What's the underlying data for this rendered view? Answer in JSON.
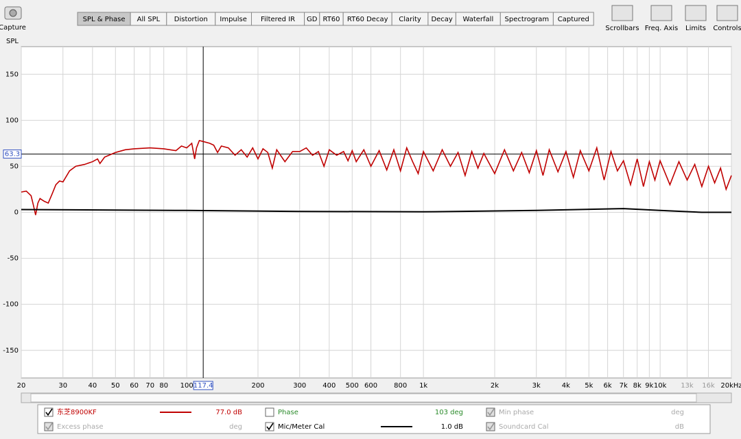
{
  "toolbar": {
    "capture": "Capture",
    "tabs": [
      "SPL & Phase",
      "All SPL",
      "Distortion",
      "Impulse",
      "Filtered IR",
      "GD",
      "RT60",
      "RT60 Decay",
      "Clarity",
      "Decay",
      "Waterfall",
      "Spectrogram",
      "Captured"
    ],
    "tools": [
      "Scrollbars",
      "Freq. Axis",
      "Limits",
      "Controls"
    ]
  },
  "chart": {
    "type": "line",
    "y_label": "SPL",
    "xscale": "log",
    "grid": true,
    "xlim": [
      20,
      20000
    ],
    "ylim": [
      -180,
      180
    ],
    "yticks": [
      -150,
      -100,
      -50,
      0,
      50,
      100,
      150
    ],
    "xticks": [
      20,
      30,
      40,
      50,
      60,
      70,
      80,
      100,
      200,
      300,
      400,
      500,
      600,
      800,
      {
        "value": 1000,
        "label": "1k"
      },
      {
        "value": 2000,
        "label": "2k"
      },
      {
        "value": 3000,
        "label": "3k"
      },
      {
        "value": 4000,
        "label": "4k"
      },
      {
        "value": 5000,
        "label": "5k"
      },
      {
        "value": 6000,
        "label": "6k"
      },
      {
        "value": 7000,
        "label": "7k"
      },
      {
        "value": 8000,
        "label": "8k"
      },
      {
        "value": 9000,
        "label": "9k"
      },
      {
        "value": 10000,
        "label": "10k"
      },
      {
        "value": 13000,
        "label": "13k"
      },
      {
        "value": 16000,
        "label": "16k"
      },
      {
        "value": 20000,
        "label": "20kHz"
      }
    ],
    "cursor": {
      "x": 117.4,
      "y": 63.3
    },
    "series": [
      {
        "name": "东芝8900KF",
        "color": "#c00000",
        "x": [
          20,
          21,
          22,
          22.5,
          23,
          23.5,
          24,
          25,
          26,
          27,
          28,
          29,
          30,
          32,
          34,
          37,
          40,
          42,
          43,
          45,
          50,
          55,
          60,
          70,
          80,
          90,
          95,
          100,
          105,
          108,
          110,
          113,
          117,
          125,
          130,
          135,
          140,
          150,
          160,
          170,
          180,
          190,
          200,
          210,
          220,
          230,
          240,
          260,
          280,
          300,
          320,
          340,
          360,
          380,
          400,
          430,
          460,
          480,
          500,
          520,
          560,
          600,
          650,
          700,
          750,
          800,
          850,
          900,
          950,
          1000,
          1100,
          1200,
          1300,
          1400,
          1500,
          1600,
          1700,
          1800,
          2000,
          2200,
          2400,
          2600,
          2800,
          3000,
          3200,
          3400,
          3700,
          4000,
          4300,
          4600,
          5000,
          5400,
          5800,
          6200,
          6600,
          7000,
          7500,
          8000,
          8500,
          9000,
          9500,
          10000,
          11000,
          12000,
          13000,
          14000,
          15000,
          16000,
          17000,
          18000,
          19000,
          20000
        ],
        "values": [
          22,
          23,
          18,
          8,
          -3,
          10,
          15,
          12,
          10,
          20,
          30,
          34,
          33,
          45,
          50,
          52,
          55,
          58,
          53,
          60,
          65,
          68,
          69,
          70,
          69,
          67,
          72,
          70,
          75,
          58,
          70,
          78,
          77,
          75,
          73,
          65,
          72,
          70,
          62,
          68,
          60,
          70,
          58,
          69,
          65,
          48,
          68,
          55,
          66,
          66,
          70,
          62,
          66,
          50,
          68,
          62,
          66,
          56,
          67,
          55,
          68,
          50,
          67,
          46,
          68,
          45,
          70,
          55,
          42,
          66,
          45,
          68,
          50,
          65,
          40,
          66,
          48,
          64,
          42,
          68,
          45,
          65,
          43,
          67,
          40,
          68,
          44,
          66,
          38,
          67,
          45,
          70,
          35,
          66,
          45,
          56,
          30,
          58,
          28,
          55,
          35,
          56,
          30,
          55,
          35,
          52,
          28,
          50,
          32,
          48,
          25,
          40
        ]
      },
      {
        "name": "Mic/Meter Cal",
        "color": "#000000",
        "x": [
          20,
          100,
          300,
          1000,
          3000,
          7000,
          10000,
          15000,
          20000
        ],
        "values": [
          3,
          2,
          1,
          0.5,
          2,
          4,
          2,
          0,
          0
        ]
      }
    ]
  },
  "scrollbar": {
    "labels": []
  },
  "legend": {
    "rows": [
      [
        {
          "checked": true,
          "label": "东芝8900KF",
          "value": "77.0 dB"
        },
        {
          "checked": false,
          "label": "Phase",
          "value": "103 deg"
        },
        {
          "checked": true,
          "label": "Min phase",
          "value": "deg"
        }
      ],
      [
        {
          "checked": true,
          "label": "Excess phase",
          "value": "deg"
        },
        {
          "checked": true,
          "label": "Mic/Meter Cal",
          "value": "1.0 dB"
        },
        {
          "checked": true,
          "label": "Soundcard Cal",
          "value": "dB"
        }
      ]
    ]
  }
}
